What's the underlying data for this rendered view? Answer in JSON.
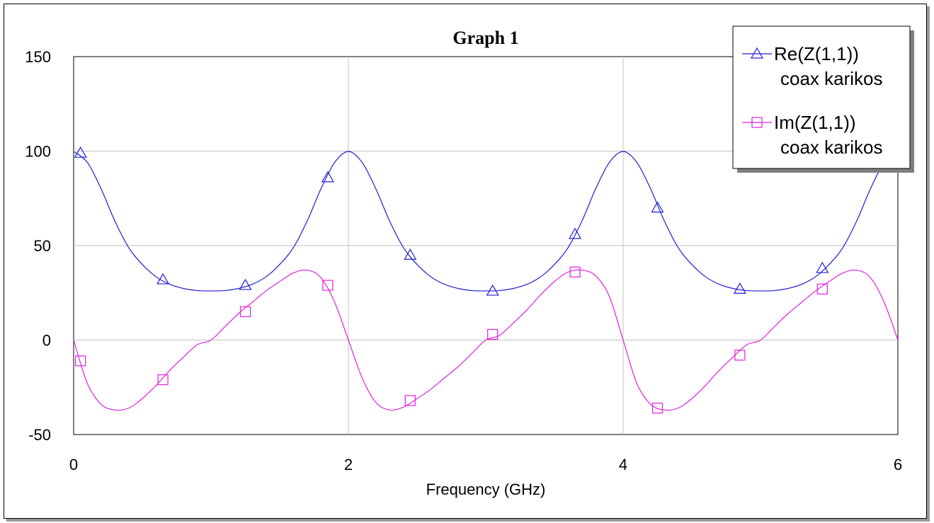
{
  "chart_data": {
    "type": "line",
    "title": "Graph 1",
    "xlabel": "Frequency (GHz)",
    "ylabel": "",
    "xlim": [
      0,
      6
    ],
    "ylim": [
      -50,
      150
    ],
    "xticks": [
      "0",
      "2",
      "4",
      "6"
    ],
    "yticks": [
      "150",
      "100",
      "50",
      "0",
      "-50"
    ],
    "grid": true,
    "legend_position": "top-right",
    "series": [
      {
        "name": "Re(Z(1,1))",
        "subname": "coax karikos",
        "color": "#2020d0",
        "marker": "triangle",
        "x": [
          0,
          0.1,
          0.2,
          0.3,
          0.4,
          0.5,
          0.6,
          0.7,
          0.8,
          0.9,
          1.0,
          1.1,
          1.2,
          1.3,
          1.4,
          1.5,
          1.6,
          1.7,
          1.8,
          1.9,
          2.0,
          2.1,
          2.2,
          2.3,
          2.4,
          2.5,
          2.6,
          2.7,
          2.8,
          2.9,
          3.0,
          3.1,
          3.2,
          3.3,
          3.4,
          3.5,
          3.6,
          3.7,
          3.8,
          3.9,
          4.0,
          4.1,
          4.2,
          4.3,
          4.4,
          4.5,
          4.6,
          4.7,
          4.8,
          4.9,
          5.0,
          5.1,
          5.2,
          5.3,
          5.4,
          5.5,
          5.6,
          5.7,
          5.8,
          5.9,
          6.0
        ],
        "y": [
          99.8,
          94,
          80,
          63,
          49,
          40,
          33.5,
          29.5,
          27.3,
          26.2,
          26,
          26.2,
          27.3,
          29.5,
          33.5,
          40,
          49,
          63,
          80,
          94,
          99.8,
          94,
          80,
          63,
          49,
          40,
          33.5,
          29.5,
          27.3,
          26.2,
          26,
          26.2,
          27.3,
          29.5,
          33.5,
          40,
          49,
          63,
          80,
          94,
          99.8,
          94,
          80,
          63,
          49,
          40,
          33.5,
          29.5,
          27.3,
          26.2,
          26,
          26.2,
          27.3,
          29.5,
          33.5,
          40,
          49,
          63,
          80,
          94,
          99.8
        ],
        "marker_x": [
          0.05,
          0.65,
          1.25,
          1.85,
          2.45,
          3.05,
          3.65,
          4.25,
          4.85,
          5.45
        ],
        "marker_y": [
          99,
          32,
          29,
          86,
          45,
          26,
          56,
          70,
          27,
          38
        ]
      },
      {
        "name": "Im(Z(1,1))",
        "subname": "coax karikos",
        "color": "#e020e0",
        "marker": "square",
        "x": [
          0,
          0.1,
          0.2,
          0.3,
          0.4,
          0.5,
          0.6,
          0.7,
          0.8,
          0.9,
          1.0,
          1.1,
          1.2,
          1.3,
          1.4,
          1.5,
          1.6,
          1.7,
          1.8,
          1.9,
          2.0,
          2.1,
          2.2,
          2.3,
          2.4,
          2.5,
          2.6,
          2.7,
          2.8,
          2.9,
          3.0,
          3.1,
          3.2,
          3.3,
          3.4,
          3.5,
          3.6,
          3.7,
          3.8,
          3.9,
          4.0,
          4.1,
          4.2,
          4.3,
          4.4,
          4.5,
          4.6,
          4.7,
          4.8,
          4.9,
          5.0,
          5.1,
          5.2,
          5.3,
          5.4,
          5.5,
          5.6,
          5.7,
          5.8,
          5.9,
          6.0
        ],
        "y": [
          0,
          -23,
          -34,
          -37,
          -36,
          -31,
          -24,
          -16,
          -9,
          -2.5,
          0,
          7,
          14,
          20,
          26,
          31,
          35.5,
          37,
          33,
          20,
          0,
          -20,
          -33,
          -37,
          -35.5,
          -31,
          -26,
          -20,
          -14,
          -7,
          0,
          2.5,
          9,
          16,
          24,
          31,
          36,
          37,
          34,
          23,
          0,
          -23,
          -34,
          -37,
          -36,
          -31,
          -24,
          -16,
          -9,
          -2.5,
          0,
          7,
          14,
          20,
          26,
          31,
          35.5,
          37,
          33,
          20,
          0
        ],
        "marker_x": [
          0.05,
          0.65,
          1.25,
          1.85,
          2.45,
          3.05,
          3.65,
          4.25,
          4.85,
          5.45
        ],
        "marker_y": [
          -11,
          -21,
          15,
          29,
          -32,
          3,
          36,
          -36,
          -8,
          27
        ]
      }
    ]
  }
}
